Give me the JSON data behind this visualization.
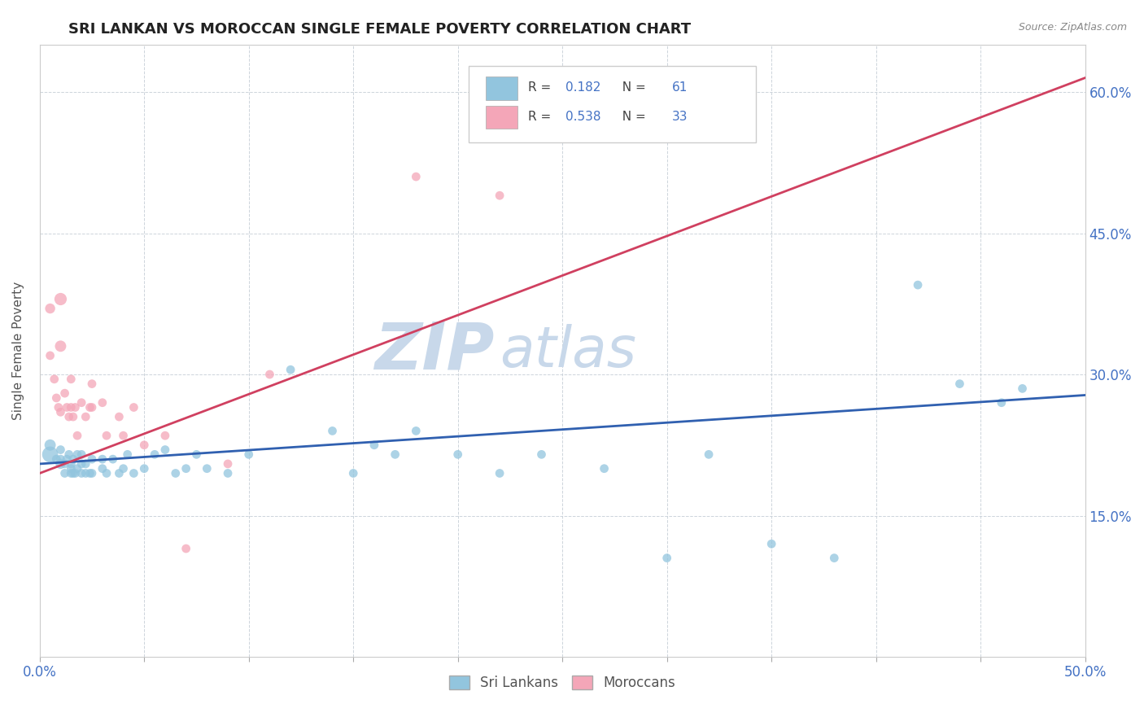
{
  "title": "SRI LANKAN VS MOROCCAN SINGLE FEMALE POVERTY CORRELATION CHART",
  "source_text": "Source: ZipAtlas.com",
  "ylabel": "Single Female Poverty",
  "xlim": [
    0.0,
    0.5
  ],
  "ylim": [
    0.0,
    0.65
  ],
  "ytick_positions": [
    0.15,
    0.3,
    0.45,
    0.6
  ],
  "ytick_labels": [
    "15.0%",
    "30.0%",
    "45.0%",
    "60.0%"
  ],
  "sri_lankan_R": 0.182,
  "sri_lankan_N": 61,
  "moroccan_R": 0.538,
  "moroccan_N": 33,
  "sri_lankan_color": "#92c5de",
  "moroccan_color": "#f4a6b8",
  "sri_lankan_line_color": "#3060b0",
  "moroccan_line_color": "#d04060",
  "watermark_color": "#c8d8ea",
  "sl_line_x": [
    0.0,
    0.5
  ],
  "sl_line_y": [
    0.205,
    0.278
  ],
  "mo_line_x": [
    0.0,
    0.5
  ],
  "mo_line_y": [
    0.195,
    0.615
  ],
  "sri_lankans_x": [
    0.005,
    0.005,
    0.008,
    0.01,
    0.01,
    0.01,
    0.012,
    0.012,
    0.013,
    0.014,
    0.015,
    0.015,
    0.015,
    0.016,
    0.016,
    0.017,
    0.018,
    0.018,
    0.02,
    0.02,
    0.02,
    0.022,
    0.022,
    0.024,
    0.025,
    0.025,
    0.03,
    0.03,
    0.032,
    0.035,
    0.038,
    0.04,
    0.042,
    0.045,
    0.05,
    0.055,
    0.06,
    0.065,
    0.07,
    0.075,
    0.08,
    0.09,
    0.1,
    0.12,
    0.14,
    0.15,
    0.16,
    0.17,
    0.18,
    0.2,
    0.22,
    0.24,
    0.27,
    0.3,
    0.32,
    0.35,
    0.38,
    0.42,
    0.44,
    0.46,
    0.47
  ],
  "sri_lankans_y": [
    0.215,
    0.225,
    0.21,
    0.205,
    0.21,
    0.22,
    0.195,
    0.205,
    0.21,
    0.215,
    0.195,
    0.2,
    0.205,
    0.195,
    0.21,
    0.195,
    0.2,
    0.215,
    0.195,
    0.205,
    0.215,
    0.195,
    0.205,
    0.195,
    0.195,
    0.21,
    0.2,
    0.21,
    0.195,
    0.21,
    0.195,
    0.2,
    0.215,
    0.195,
    0.2,
    0.215,
    0.22,
    0.195,
    0.2,
    0.215,
    0.2,
    0.195,
    0.215,
    0.305,
    0.24,
    0.195,
    0.225,
    0.215,
    0.24,
    0.215,
    0.195,
    0.215,
    0.2,
    0.105,
    0.215,
    0.12,
    0.105,
    0.395,
    0.29,
    0.27,
    0.285
  ],
  "sri_lankans_size": [
    200,
    100,
    60,
    80,
    60,
    60,
    60,
    60,
    60,
    60,
    60,
    60,
    60,
    60,
    60,
    60,
    60,
    60,
    60,
    60,
    60,
    60,
    60,
    60,
    60,
    60,
    60,
    60,
    60,
    60,
    60,
    60,
    60,
    60,
    60,
    60,
    60,
    60,
    60,
    60,
    60,
    60,
    60,
    60,
    60,
    60,
    60,
    60,
    60,
    60,
    60,
    60,
    60,
    60,
    60,
    60,
    60,
    60,
    60,
    60,
    60
  ],
  "moroccans_x": [
    0.005,
    0.005,
    0.007,
    0.008,
    0.009,
    0.01,
    0.01,
    0.01,
    0.012,
    0.013,
    0.014,
    0.015,
    0.015,
    0.016,
    0.017,
    0.018,
    0.02,
    0.022,
    0.024,
    0.025,
    0.025,
    0.03,
    0.032,
    0.038,
    0.04,
    0.045,
    0.05,
    0.06,
    0.07,
    0.09,
    0.11,
    0.18,
    0.22
  ],
  "moroccans_y": [
    0.37,
    0.32,
    0.295,
    0.275,
    0.265,
    0.38,
    0.33,
    0.26,
    0.28,
    0.265,
    0.255,
    0.295,
    0.265,
    0.255,
    0.265,
    0.235,
    0.27,
    0.255,
    0.265,
    0.29,
    0.265,
    0.27,
    0.235,
    0.255,
    0.235,
    0.265,
    0.225,
    0.235,
    0.115,
    0.205,
    0.3,
    0.51,
    0.49
  ],
  "moroccans_size": [
    80,
    60,
    60,
    60,
    60,
    120,
    100,
    60,
    60,
    60,
    60,
    60,
    60,
    60,
    60,
    60,
    60,
    60,
    60,
    60,
    60,
    60,
    60,
    60,
    60,
    60,
    60,
    60,
    60,
    60,
    60,
    60,
    60
  ]
}
